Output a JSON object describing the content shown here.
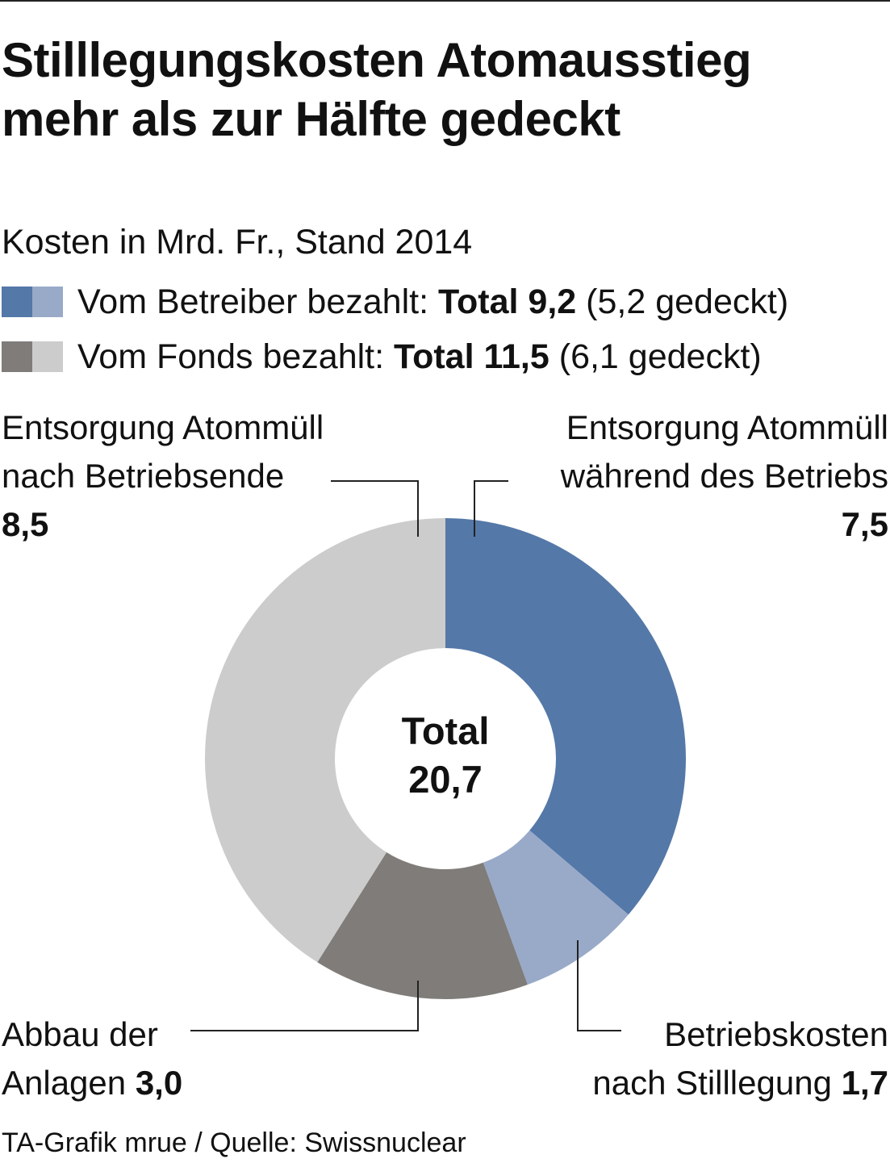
{
  "title_lines": [
    "Stilllegungskosten Atomausstieg",
    "mehr als zur Hälfte gedeckt"
  ],
  "subtitle": "Kosten in Mrd. Fr., Stand 2014",
  "legend": [
    {
      "text": "Vom Betreiber bezahlt: ",
      "total": "Total 9,2",
      "covered": "(5,2 gedeckt)",
      "colors": [
        "#5478a8",
        "#99aac8"
      ]
    },
    {
      "text": "Vom Fonds bezahlt: ",
      "total": "Total 11,5",
      "covered": "(6,1 gedeckt)",
      "colors": [
        "#7f7c79",
        "#cccccc"
      ]
    }
  ],
  "labels": {
    "entsorgung_nach": {
      "line1": "Entsorgung Atommüll",
      "line2": "nach Betriebsende",
      "value": "8,5"
    },
    "entsorgung_waehrend": {
      "line1": "Entsorgung Atommüll",
      "line2": "während des Betriebs",
      "value": "7,5"
    },
    "abbau": {
      "line1": "Abbau der",
      "line2": "Anlagen ",
      "value": "3,0"
    },
    "betriebskosten": {
      "line1": "Betriebskosten",
      "line2": "nach Stilllegung ",
      "value": "1,7"
    }
  },
  "center": {
    "line1": "Total",
    "line2": "20,7"
  },
  "source": "TA-Grafik mrue / Quelle: Swissnuclear",
  "chart_data": {
    "type": "pie",
    "variant": "donut",
    "start": "top",
    "direction": "clockwise",
    "unit": "Mrd. Fr.",
    "total": 20.7,
    "slices": [
      {
        "name": "Entsorgung Atommüll während des Betriebs",
        "value": 7.5,
        "color": "#5478a8",
        "group": "Vom Betreiber bezahlt"
      },
      {
        "name": "Betriebskosten nach Stilllegung",
        "value": 1.7,
        "color": "#99aac8",
        "group": "Vom Betreiber bezahlt"
      },
      {
        "name": "Abbau der Anlagen",
        "value": 3.0,
        "color": "#7f7c79",
        "group": "Vom Fonds bezahlt"
      },
      {
        "name": "Entsorgung Atommüll nach Betriebsende",
        "value": 8.5,
        "color": "#cccccc",
        "group": "Vom Fonds bezahlt"
      }
    ]
  }
}
